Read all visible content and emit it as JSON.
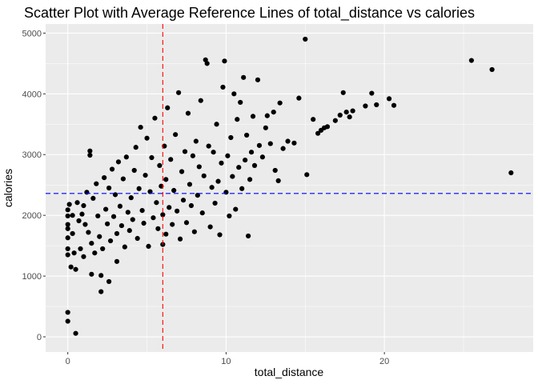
{
  "chart_data": {
    "type": "scatter",
    "title": "Scatter Plot with Average Reference Lines of total_distance vs calories",
    "xlabel": "total_distance",
    "ylabel": "calories",
    "xlim": [
      -1.4,
      29.4
    ],
    "ylim": [
      -250,
      5150
    ],
    "x_ticks": [
      0,
      10,
      20
    ],
    "x_tick_labels": [
      "0",
      "10",
      "20"
    ],
    "y_ticks": [
      0,
      1000,
      2000,
      3000,
      4000,
      5000
    ],
    "y_tick_labels": [
      "0",
      "1000",
      "2000",
      "3000",
      "4000",
      "5000"
    ],
    "grid": true,
    "background_color": "#EBEBEB",
    "grid_color": "#FFFFFF",
    "point_color": "#000000",
    "reference_lines": [
      {
        "axis": "x",
        "value": 6.0,
        "color": "#FF0000",
        "style": "dashed"
      },
      {
        "axis": "y",
        "value": 2360,
        "color": "#0000FF",
        "style": "dashed"
      }
    ],
    "points": [
      [
        0.0,
        403
      ],
      [
        0.0,
        257
      ],
      [
        0.5,
        57
      ],
      [
        0.0,
        1350
      ],
      [
        0.0,
        1450
      ],
      [
        0.0,
        1630
      ],
      [
        0.0,
        1780
      ],
      [
        0.0,
        1850
      ],
      [
        0.0,
        1990
      ],
      [
        0.0,
        2090
      ],
      [
        0.1,
        2180
      ],
      [
        0.2,
        1150
      ],
      [
        0.3,
        1700
      ],
      [
        0.3,
        2000
      ],
      [
        0.4,
        1380
      ],
      [
        0.5,
        1110
      ],
      [
        0.6,
        2210
      ],
      [
        0.7,
        1910
      ],
      [
        0.8,
        1450
      ],
      [
        0.9,
        2020
      ],
      [
        1.0,
        1320
      ],
      [
        1.0,
        2160
      ],
      [
        1.1,
        1850
      ],
      [
        1.2,
        2380
      ],
      [
        1.3,
        1720
      ],
      [
        1.4,
        2990
      ],
      [
        1.4,
        3060
      ],
      [
        1.5,
        1540
      ],
      [
        1.5,
        1030
      ],
      [
        1.6,
        2280
      ],
      [
        1.7,
        1380
      ],
      [
        1.8,
        2520
      ],
      [
        1.9,
        1990
      ],
      [
        2.0,
        1650
      ],
      [
        2.1,
        1010
      ],
      [
        2.1,
        743
      ],
      [
        2.2,
        1450
      ],
      [
        2.3,
        2620
      ],
      [
        2.4,
        2100
      ],
      [
        2.5,
        1860
      ],
      [
        2.6,
        2450
      ],
      [
        2.6,
        910
      ],
      [
        2.7,
        1580
      ],
      [
        2.8,
        2760
      ],
      [
        2.9,
        1980
      ],
      [
        3.0,
        2340
      ],
      [
        3.1,
        1240
      ],
      [
        3.1,
        1700
      ],
      [
        3.2,
        2880
      ],
      [
        3.3,
        2150
      ],
      [
        3.4,
        1830
      ],
      [
        3.5,
        2600
      ],
      [
        3.6,
        1480
      ],
      [
        3.7,
        2960
      ],
      [
        3.8,
        2050
      ],
      [
        3.9,
        1750
      ],
      [
        4.0,
        2290
      ],
      [
        4.1,
        1930
      ],
      [
        4.2,
        2740
      ],
      [
        4.3,
        3120
      ],
      [
        4.4,
        1620
      ],
      [
        4.5,
        2440
      ],
      [
        4.6,
        3450
      ],
      [
        4.7,
        2080
      ],
      [
        4.8,
        1870
      ],
      [
        4.9,
        2660
      ],
      [
        5.0,
        3270
      ],
      [
        5.1,
        1490
      ],
      [
        5.2,
        2390
      ],
      [
        5.3,
        2950
      ],
      [
        5.4,
        1960
      ],
      [
        5.5,
        3600
      ],
      [
        5.6,
        2210
      ],
      [
        5.7,
        1780
      ],
      [
        5.8,
        2820
      ],
      [
        5.9,
        2480
      ],
      [
        6.0,
        1520
      ],
      [
        6.0,
        2010
      ],
      [
        6.1,
        3140
      ],
      [
        6.2,
        1690
      ],
      [
        6.2,
        2590
      ],
      [
        6.3,
        3770
      ],
      [
        6.4,
        2130
      ],
      [
        6.5,
        2920
      ],
      [
        6.6,
        1850
      ],
      [
        6.7,
        2410
      ],
      [
        6.8,
        3330
      ],
      [
        6.9,
        2070
      ],
      [
        7.0,
        4020
      ],
      [
        7.1,
        1610
      ],
      [
        7.2,
        2720
      ],
      [
        7.3,
        2250
      ],
      [
        7.4,
        3050
      ],
      [
        7.5,
        1880
      ],
      [
        7.6,
        3680
      ],
      [
        7.7,
        2510
      ],
      [
        7.8,
        2160
      ],
      [
        7.9,
        2980
      ],
      [
        8.0,
        1730
      ],
      [
        8.1,
        3220
      ],
      [
        8.2,
        2330
      ],
      [
        8.3,
        2800
      ],
      [
        8.4,
        3890
      ],
      [
        8.5,
        2040
      ],
      [
        8.6,
        2650
      ],
      [
        8.7,
        4560
      ],
      [
        8.8,
        4500
      ],
      [
        8.9,
        3140
      ],
      [
        9.0,
        1810
      ],
      [
        9.1,
        2460
      ],
      [
        9.2,
        3040
      ],
      [
        9.3,
        2200
      ],
      [
        9.4,
        3500
      ],
      [
        9.5,
        2560
      ],
      [
        9.6,
        1680
      ],
      [
        9.7,
        2860
      ],
      [
        9.8,
        4110
      ],
      [
        9.9,
        4540
      ],
      [
        10.0,
        2380
      ],
      [
        10.1,
        2980
      ],
      [
        10.2,
        1990
      ],
      [
        10.3,
        3280
      ],
      [
        10.4,
        2640
      ],
      [
        10.5,
        4000
      ],
      [
        10.6,
        2100
      ],
      [
        10.7,
        3580
      ],
      [
        10.8,
        2790
      ],
      [
        10.9,
        3860
      ],
      [
        11.0,
        2440
      ],
      [
        11.1,
        4270
      ],
      [
        11.2,
        2910
      ],
      [
        11.3,
        3320
      ],
      [
        11.4,
        1660
      ],
      [
        11.5,
        2590
      ],
      [
        11.6,
        3040
      ],
      [
        11.7,
        3630
      ],
      [
        11.8,
        2820
      ],
      [
        12.0,
        4230
      ],
      [
        12.1,
        3150
      ],
      [
        12.3,
        2960
      ],
      [
        12.5,
        3440
      ],
      [
        12.6,
        3640
      ],
      [
        12.8,
        3180
      ],
      [
        13.0,
        3700
      ],
      [
        13.1,
        2740
      ],
      [
        13.3,
        2570
      ],
      [
        13.4,
        3850
      ],
      [
        13.6,
        3100
      ],
      [
        13.9,
        3220
      ],
      [
        14.3,
        3190
      ],
      [
        14.6,
        3930
      ],
      [
        15.0,
        4900
      ],
      [
        15.1,
        2670
      ],
      [
        15.5,
        3580
      ],
      [
        15.8,
        3350
      ],
      [
        16.0,
        3400
      ],
      [
        16.2,
        3440
      ],
      [
        16.4,
        3460
      ],
      [
        16.9,
        3560
      ],
      [
        17.2,
        3650
      ],
      [
        17.4,
        4020
      ],
      [
        17.6,
        3700
      ],
      [
        17.8,
        3620
      ],
      [
        18.0,
        3720
      ],
      [
        18.8,
        3800
      ],
      [
        19.2,
        4010
      ],
      [
        19.5,
        3820
      ],
      [
        20.3,
        3920
      ],
      [
        20.6,
        3810
      ],
      [
        25.5,
        4550
      ],
      [
        26.8,
        4400
      ],
      [
        28.0,
        2700
      ]
    ]
  }
}
